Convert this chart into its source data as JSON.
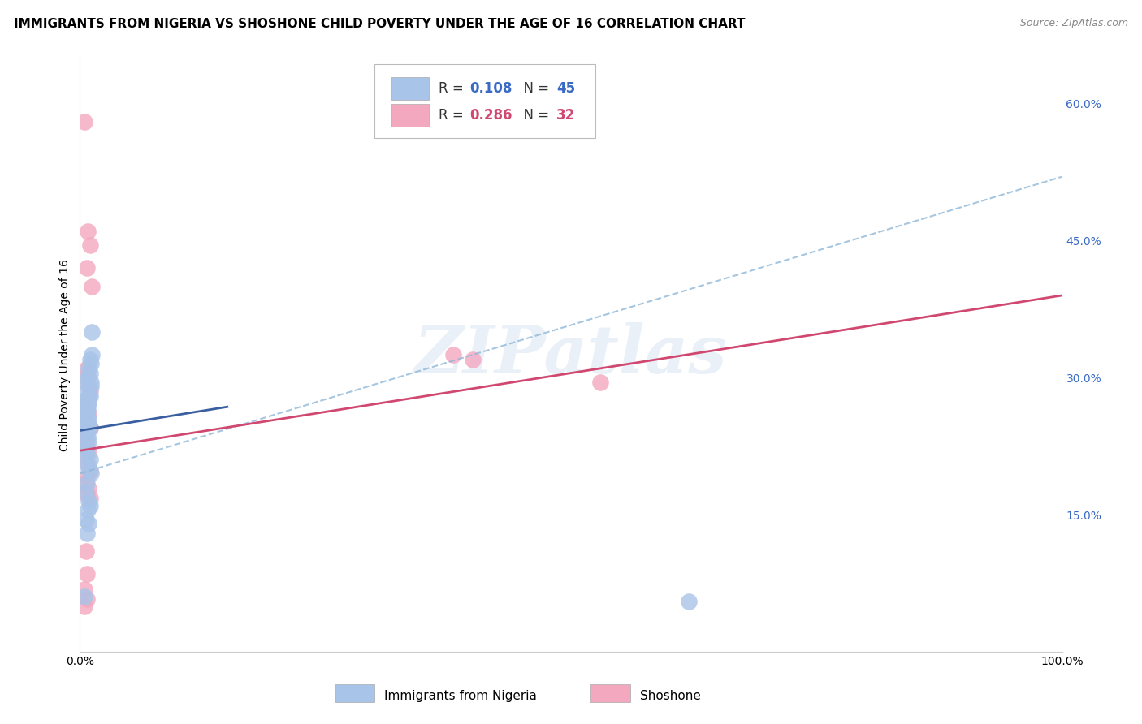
{
  "title": "IMMIGRANTS FROM NIGERIA VS SHOSHONE CHILD POVERTY UNDER THE AGE OF 16 CORRELATION CHART",
  "source": "Source: ZipAtlas.com",
  "ylabel": "Child Poverty Under the Age of 16",
  "xlim": [
    0,
    1.0
  ],
  "ylim": [
    0,
    0.65
  ],
  "xticks": [
    0.0,
    0.2,
    0.4,
    0.6,
    0.8,
    1.0
  ],
  "xticklabels": [
    "0.0%",
    "",
    "",
    "",
    "",
    "100.0%"
  ],
  "ytick_positions": [
    0.15,
    0.3,
    0.45,
    0.6
  ],
  "ytick_labels": [
    "15.0%",
    "30.0%",
    "45.0%",
    "60.0%"
  ],
  "watermark": "ZIPatlas",
  "nigeria_color": "#a8c4e8",
  "shoshone_color": "#f4a8c0",
  "nigeria_line_color": "#3a5fa0",
  "shoshone_line_color": "#d04870",
  "nigeria_dash_color": "#90b8d8",
  "nigeria_scatter_x": [
    0.008,
    0.01,
    0.012,
    0.006,
    0.009,
    0.011,
    0.007,
    0.01,
    0.008,
    0.006,
    0.009,
    0.011,
    0.007,
    0.008,
    0.006,
    0.01,
    0.008,
    0.009,
    0.007,
    0.011,
    0.006,
    0.008,
    0.009,
    0.007,
    0.01,
    0.008,
    0.006,
    0.009,
    0.007,
    0.012,
    0.006,
    0.01,
    0.008,
    0.009,
    0.011,
    0.007,
    0.006,
    0.009,
    0.01,
    0.008,
    0.006,
    0.009,
    0.007,
    0.005,
    0.62
  ],
  "nigeria_scatter_y": [
    0.3,
    0.32,
    0.325,
    0.295,
    0.31,
    0.315,
    0.285,
    0.305,
    0.27,
    0.275,
    0.28,
    0.29,
    0.265,
    0.27,
    0.26,
    0.28,
    0.265,
    0.275,
    0.26,
    0.295,
    0.245,
    0.25,
    0.255,
    0.24,
    0.245,
    0.235,
    0.225,
    0.23,
    0.22,
    0.35,
    0.215,
    0.21,
    0.205,
    0.2,
    0.195,
    0.185,
    0.175,
    0.165,
    0.16,
    0.155,
    0.145,
    0.14,
    0.13,
    0.06,
    0.055
  ],
  "shoshone_scatter_x": [
    0.005,
    0.008,
    0.01,
    0.007,
    0.012,
    0.007,
    0.006,
    0.009,
    0.01,
    0.38,
    0.007,
    0.006,
    0.009,
    0.007,
    0.01,
    0.006,
    0.007,
    0.009,
    0.006,
    0.01,
    0.007,
    0.006,
    0.009,
    0.007,
    0.01,
    0.4,
    0.53,
    0.006,
    0.007,
    0.005,
    0.007,
    0.005
  ],
  "shoshone_scatter_y": [
    0.58,
    0.46,
    0.445,
    0.42,
    0.4,
    0.31,
    0.3,
    0.29,
    0.285,
    0.325,
    0.275,
    0.265,
    0.26,
    0.25,
    0.245,
    0.235,
    0.228,
    0.218,
    0.208,
    0.198,
    0.192,
    0.185,
    0.178,
    0.172,
    0.168,
    0.32,
    0.295,
    0.11,
    0.085,
    0.068,
    0.058,
    0.05
  ],
  "nigeria_trend_x": [
    0.0,
    0.15
  ],
  "nigeria_trend_y": [
    0.242,
    0.268
  ],
  "shoshone_trend_x": [
    0.0,
    1.0
  ],
  "shoshone_trend_y": [
    0.22,
    0.39
  ],
  "dash_trend_x": [
    0.0,
    1.0
  ],
  "dash_trend_y": [
    0.195,
    0.52
  ],
  "background_color": "#ffffff",
  "grid_color": "#e0e0e0",
  "title_fontsize": 11,
  "axis_label_fontsize": 10,
  "tick_fontsize": 10,
  "source_fontsize": 9
}
